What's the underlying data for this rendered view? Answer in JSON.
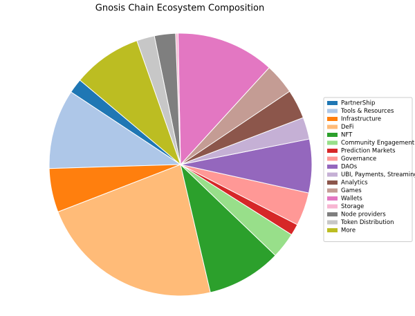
{
  "chart_data": {
    "type": "pie",
    "title": "Gnosis Chain Ecosystem Composition",
    "categories": [
      "PartnerShip",
      "Tools & Resources",
      "Infrastructure",
      "DeFi",
      "NFT",
      "Community Engagement",
      "Prediction Markets",
      "Governance",
      "DAOs",
      "UBI, Payments, Streaming",
      "Analytics",
      "Games",
      "Wallets",
      "Storage",
      "Node providers",
      "Token Distribution",
      "More"
    ],
    "values": [
      1.8,
      9.8,
      5.4,
      22.8,
      9.2,
      3.2,
      1.4,
      4.1,
      6.6,
      2.7,
      3.6,
      3.8,
      12.1,
      0.3,
      2.6,
      2.2,
      8.5
    ],
    "colors": [
      "#1f77b4",
      "#aec7e8",
      "#ff7f0e",
      "#ffbb78",
      "#2ca02c",
      "#98df8a",
      "#d62728",
      "#ff9896",
      "#9467bd",
      "#c5b0d5",
      "#8c564b",
      "#c49c94",
      "#e377c2",
      "#f7b6d2",
      "#7f7f7f",
      "#c7c7c7",
      "#bcbd22"
    ],
    "legend": "right"
  }
}
